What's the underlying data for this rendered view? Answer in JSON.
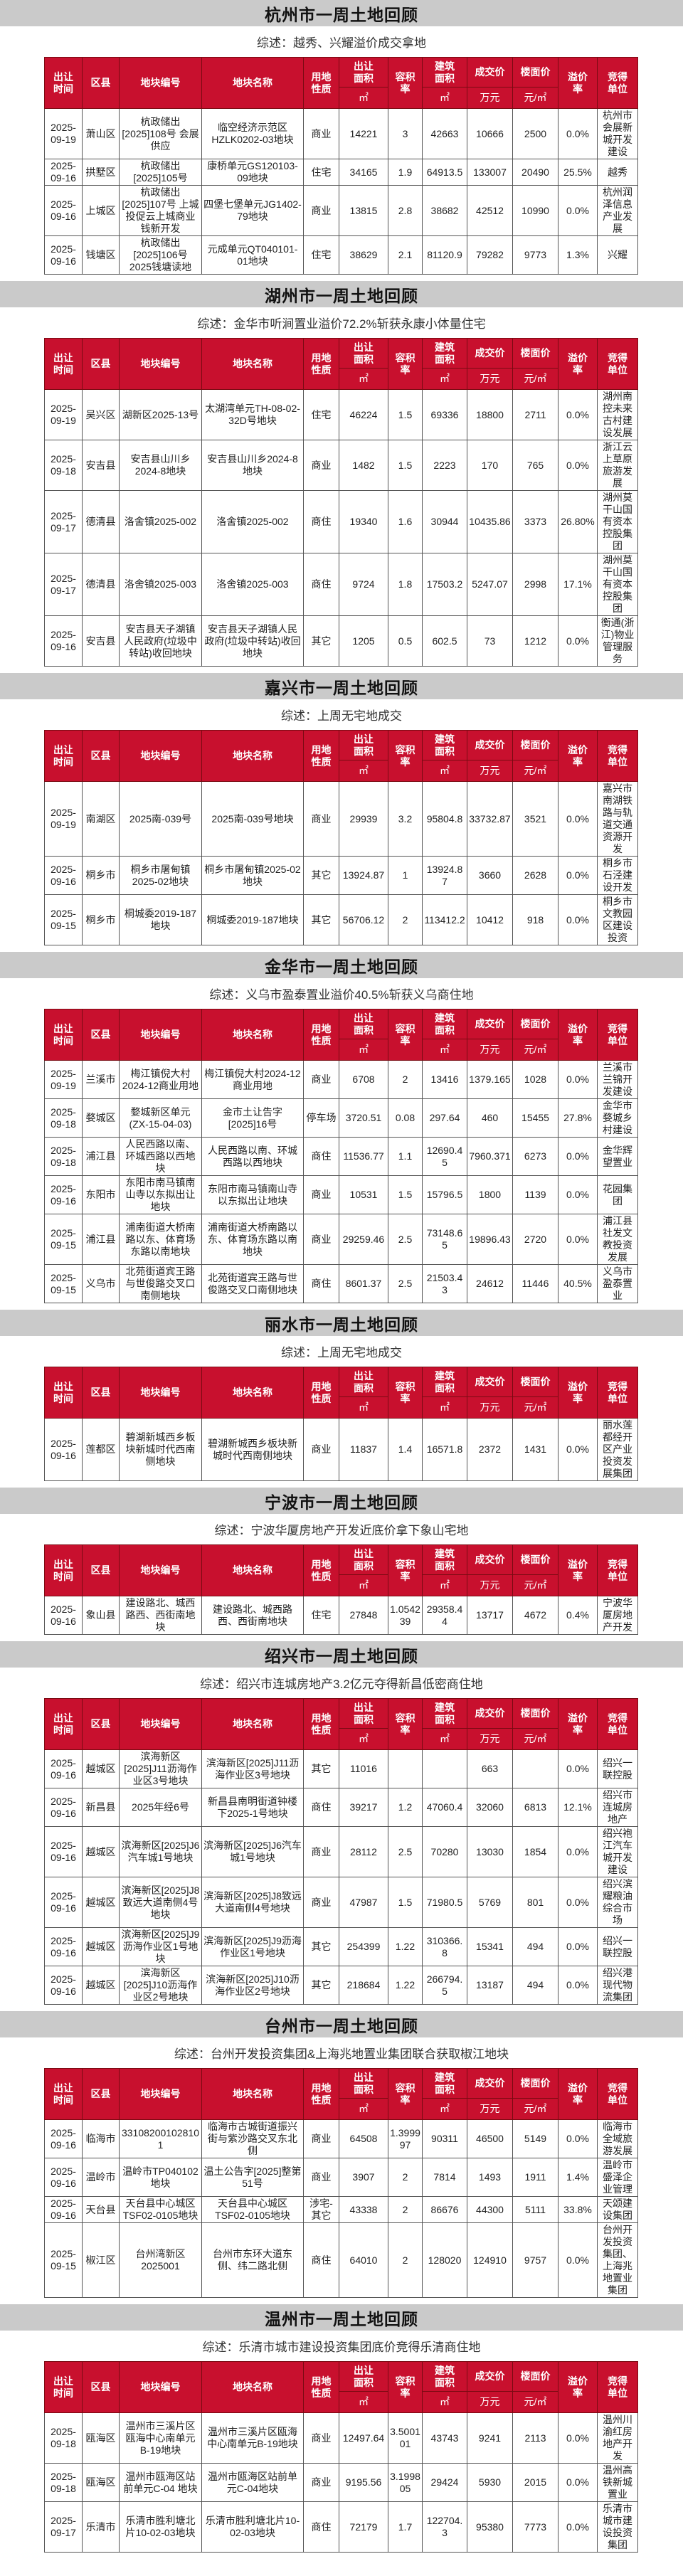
{
  "headers": {
    "date": "出让\n时间",
    "district": "区县",
    "plot_code": "地块编号",
    "plot_name": "地块名称",
    "usage": "用地\n性质",
    "land_area": "出让\n面积",
    "far": "容积\n率",
    "gfa": "建筑\n面积",
    "price": "成交价",
    "floor_price": "楼面价",
    "premium": "溢价\n率",
    "winner": "竞得\n单位",
    "unit_sqm": "㎡",
    "unit_gfa": "㎡",
    "unit_wan": "万元",
    "unit_yuan_sqm": "元/㎡"
  },
  "colors": {
    "header_red": "#c8102e",
    "title_bar": "#cacaca"
  },
  "sections": [
    {
      "title": "杭州市一周土地回顾",
      "summary": "综述：越秀、兴耀溢价成交拿地",
      "rows": [
        [
          "2025-09-19",
          "萧山区",
          "杭政储出[2025]108号 会展供应",
          "临空经济示范区HZLK0202-03地块",
          "商业",
          "14221",
          "3",
          "42663",
          "10666",
          "2500",
          "0.0%",
          "杭州市会展新城开发建设"
        ],
        [
          "2025-09-16",
          "拱墅区",
          "杭政储出[2025]105号",
          "康桥单元GS120103-09地块",
          "住宅",
          "34165",
          "1.9",
          "64913.5",
          "133007",
          "20490",
          "25.5%",
          "越秀"
        ],
        [
          "2025-09-16",
          "上城区",
          "杭政储出[2025]107号 上城投促云上城商业钱新开发",
          "四堡七堡单元JG1402-79地块",
          "商业",
          "13815",
          "2.8",
          "38682",
          "42512",
          "10990",
          "0.0%",
          "杭州润泽信息产业发展"
        ],
        [
          "2025-09-16",
          "钱塘区",
          "杭政储出[2025]106号 2025钱塘读地",
          "元成单元QT040101-01地块",
          "住宅",
          "38629",
          "2.1",
          "81120.9",
          "79282",
          "9773",
          "1.3%",
          "兴耀"
        ]
      ]
    },
    {
      "title": "湖州市一周土地回顾",
      "summary": "综述：金华市听涧置业溢价72.2%斩获永康小体量住宅",
      "rows": [
        [
          "2025-09-19",
          "吴兴区",
          "湖新区2025-13号",
          "太湖湾单元TH-08-02-32D号地块",
          "住宅",
          "46224",
          "1.5",
          "69336",
          "18800",
          "2711",
          "0.0%",
          "湖州南控未来古村建设发展"
        ],
        [
          "2025-09-18",
          "安吉县",
          "安吉县山川乡2024-8地块",
          "安吉县山川乡2024-8地块",
          "商业",
          "1482",
          "1.5",
          "2223",
          "170",
          "765",
          "0.0%",
          "浙江云上草原旅游发展"
        ],
        [
          "2025-09-17",
          "德清县",
          "洛舍镇2025-002",
          "洛舍镇2025-002",
          "商住",
          "19340",
          "1.6",
          "30944",
          "10435.86",
          "3373",
          "26.80%",
          "湖州莫干山国有资本控股集团"
        ],
        [
          "2025-09-17",
          "德清县",
          "洛舍镇2025-003",
          "洛舍镇2025-003",
          "商住",
          "9724",
          "1.8",
          "17503.2",
          "5247.07",
          "2998",
          "17.1%",
          "湖州莫干山国有资本控股集团"
        ],
        [
          "2025-09-16",
          "安吉县",
          "安吉县天子湖镇人民政府(垃圾中转站)收回地块",
          "安吉县天子湖镇人民政府(垃圾中转站)收回地块",
          "其它",
          "1205",
          "0.5",
          "602.5",
          "73",
          "1212",
          "0.0%",
          "衡通(浙江)物业管理服务"
        ]
      ]
    },
    {
      "title": "嘉兴市一周土地回顾",
      "summary": "综述：上周无宅地成交",
      "rows": [
        [
          "2025-09-19",
          "南湖区",
          "2025南-039号",
          "2025南-039号地块",
          "商业",
          "29939",
          "3.2",
          "95804.8",
          "33732.87",
          "3521",
          "0.0%",
          "嘉兴市南湖铁路与轨道交通资源开发"
        ],
        [
          "2025-09-16",
          "桐乡市",
          "桐乡市屠甸镇2025-02地块",
          "桐乡市屠甸镇2025-02地块",
          "其它",
          "13924.87",
          "1",
          "13924.87",
          "3660",
          "2628",
          "0.0%",
          "桐乡市石泾建设开发"
        ],
        [
          "2025-09-15",
          "桐乡市",
          "桐城委2019-187地块",
          "桐城委2019-187地块",
          "其它",
          "56706.12",
          "2",
          "113412.2",
          "10412",
          "918",
          "0.0%",
          "桐乡市文教园区建设投资"
        ]
      ]
    },
    {
      "title": "金华市一周土地回顾",
      "summary": "综述：义乌市盈泰置业溢价40.5%斩获义乌商住地",
      "rows": [
        [
          "2025-09-19",
          "兰溪市",
          "梅江镇倪大村2024-12商业用地",
          "梅江镇倪大村2024-12商业用地",
          "商业",
          "6708",
          "2",
          "13416",
          "1379.165",
          "1028",
          "0.0%",
          "兰溪市兰锦开发建设"
        ],
        [
          "2025-09-18",
          "婺城区",
          "婺城新区单元(ZX-15-04-03)",
          "金市土让告字[2025]16号",
          "停车场",
          "3720.51",
          "0.08",
          "297.64",
          "460",
          "15455",
          "27.8%",
          "金华市婺城乡村建设"
        ],
        [
          "2025-09-18",
          "浦江县",
          "人民西路以南、环城西路以西地块",
          "人民西路以南、环城西路以西地块",
          "商住",
          "11536.77",
          "1.1",
          "12690.45",
          "7960.371",
          "6273",
          "0.0%",
          "金华辉望置业"
        ],
        [
          "2025-09-16",
          "东阳市",
          "东阳市南马镇南山寺以东拟出让地块",
          "东阳市南马镇南山寺以东拟出让地块",
          "商业",
          "10531",
          "1.5",
          "15796.5",
          "1800",
          "1139",
          "0.0%",
          "花园集团"
        ],
        [
          "2025-09-15",
          "浦江县",
          "浦南街道大桥南路以东、体育场东路以南地块",
          "浦南街道大桥南路以东、体育场东路以南地块",
          "商业",
          "29259.46",
          "2.5",
          "73148.65",
          "19896.43",
          "2720",
          "0.0%",
          "浦江县社发文教投资发展"
        ],
        [
          "2025-09-15",
          "义乌市",
          "北苑街道宾王路与世俊路交叉口南侧地块",
          "北苑街道宾王路与世俊路交叉口南侧地块",
          "商住",
          "8601.37",
          "2.5",
          "21503.43",
          "24612",
          "11446",
          "40.5%",
          "义乌市盈泰置业"
        ]
      ]
    },
    {
      "title": "丽水市一周土地回顾",
      "summary": "综述：上周无宅地成交",
      "rows": [
        [
          "2025-09-16",
          "莲都区",
          "碧湖新城西乡板块新城时代西南侧地块",
          "碧湖新城西乡板块新城时代西南侧地块",
          "商业",
          "11837",
          "1.4",
          "16571.8",
          "2372",
          "1431",
          "0.0%",
          "丽水莲都经开区产业投资发展集团"
        ]
      ]
    },
    {
      "title": "宁波市一周土地回顾",
      "summary": "综述：宁波华厦房地产开发近底价拿下象山宅地",
      "rows": [
        [
          "2025-09-16",
          "象山县",
          "建设路北、城西路西、西街南地块",
          "建设路北、城西路西、西街南地块",
          "住宅",
          "27848",
          "1.054239",
          "29358.44",
          "13717",
          "4672",
          "0.4%",
          "宁波华厦房地产开发"
        ]
      ]
    },
    {
      "title": "绍兴市一周土地回顾",
      "summary": "综述：绍兴市连城房地产3.2亿元夺得新昌低密商住地",
      "rows": [
        [
          "2025-09-16",
          "越城区",
          "滨海新区[2025]J11沥海作业区3号地块",
          "滨海新区[2025]J11沥海作业区3号地块",
          "其它",
          "11016",
          "",
          "",
          "663",
          "",
          "0.0%",
          "绍兴一联控股"
        ],
        [
          "2025-09-16",
          "新昌县",
          "2025年经6号",
          "新昌县南明街道钟楼下2025-1号地块",
          "商住",
          "39217",
          "1.2",
          "47060.4",
          "32060",
          "6813",
          "12.1%",
          "绍兴市连城房地产"
        ],
        [
          "2025-09-16",
          "越城区",
          "滨海新区[2025]J6汽车城1号地块",
          "滨海新区[2025]J6汽车城1号地块",
          "商业",
          "28112",
          "2.5",
          "70280",
          "13030",
          "1854",
          "0.0%",
          "绍兴袍江汽车城开发建设"
        ],
        [
          "2025-09-16",
          "越城区",
          "滨海新区[2025]J8致远大道南侧4号地块",
          "滨海新区[2025]J8致远大道南侧4号地块",
          "商业",
          "47987",
          "1.5",
          "71980.5",
          "5769",
          "801",
          "0.0%",
          "绍兴滨耀粮油综合市场"
        ],
        [
          "2025-09-16",
          "越城区",
          "滨海新区[2025]J9沥海作业区1号地块",
          "滨海新区[2025]J9沥海作业区1号地块",
          "其它",
          "254399",
          "1.22",
          "310366.8",
          "15341",
          "494",
          "0.0%",
          "绍兴一联控股"
        ],
        [
          "2025-09-16",
          "越城区",
          "滨海新区[2025]J10沥海作业区2号地块",
          "滨海新区[2025]J10沥海作业区2号地块",
          "其它",
          "218684",
          "1.22",
          "266794.5",
          "13187",
          "494",
          "0.0%",
          "绍兴港现代物流集团"
        ]
      ]
    },
    {
      "title": "台州市一周土地回顾",
      "summary": "综述：台州开发投资集团&上海兆地置业集团联合获取椒江地块",
      "rows": [
        [
          "2025-09-16",
          "临海市",
          "331082001028101",
          "临海市古城街道振兴街与紫沙路交叉东北侧",
          "商业",
          "64508",
          "1.399997",
          "90311",
          "46500",
          "5149",
          "0.0%",
          "临海市全域旅游发展"
        ],
        [
          "2025-09-16",
          "温岭市",
          "温岭市TP040102地块",
          "温土公告字[2025]整第51号",
          "商业",
          "3907",
          "2",
          "7814",
          "1493",
          "1911",
          "1.4%",
          "温岭市盛泽企业管理"
        ],
        [
          "2025-09-16",
          "天台县",
          "天台县中心城区TSF02-0105地块",
          "天台县中心城区TSF02-0105地块",
          "涉宅-其它",
          "43338",
          "2",
          "86676",
          "44300",
          "5111",
          "33.8%",
          "天颂建设集团"
        ],
        [
          "2025-09-15",
          "椒江区",
          "台州湾新区2025001",
          "台州市东环大道东侧、纬二路北侧",
          "商住",
          "64010",
          "2",
          "128020",
          "124910",
          "9757",
          "0.0%",
          "台州开发投资集团、上海兆地置业集团"
        ]
      ]
    },
    {
      "title": "温州市一周土地回顾",
      "summary": "综述：乐清市城市建设投资集团底价竞得乐清商住地",
      "rows": [
        [
          "2025-09-18",
          "瓯海区",
          "温州市三溪片区瓯海中心南单元B-19地块",
          "温州市三溪片区瓯海中心南单元B-19地块",
          "商业",
          "12497.64",
          "3.500101",
          "43743",
          "9241",
          "2113",
          "0.0%",
          "温州川渝红房地产开发"
        ],
        [
          "2025-09-18",
          "瓯海区",
          "温州市瓯海区站前单元C-04 地块",
          "温州市瓯海区站前单元C-04地块",
          "商业",
          "9195.56",
          "3.199805",
          "29424",
          "5930",
          "2015",
          "0.0%",
          "温州高铁新城置业"
        ],
        [
          "2025-09-17",
          "乐清市",
          "乐清市胜利塘北片10-02-03地块",
          "乐清市胜利塘北片10-02-03地块",
          "商住",
          "72179",
          "1.7",
          "122704.3",
          "95380",
          "7773",
          "0.0%",
          "乐清市城市建设投资集团"
        ]
      ]
    }
  ]
}
